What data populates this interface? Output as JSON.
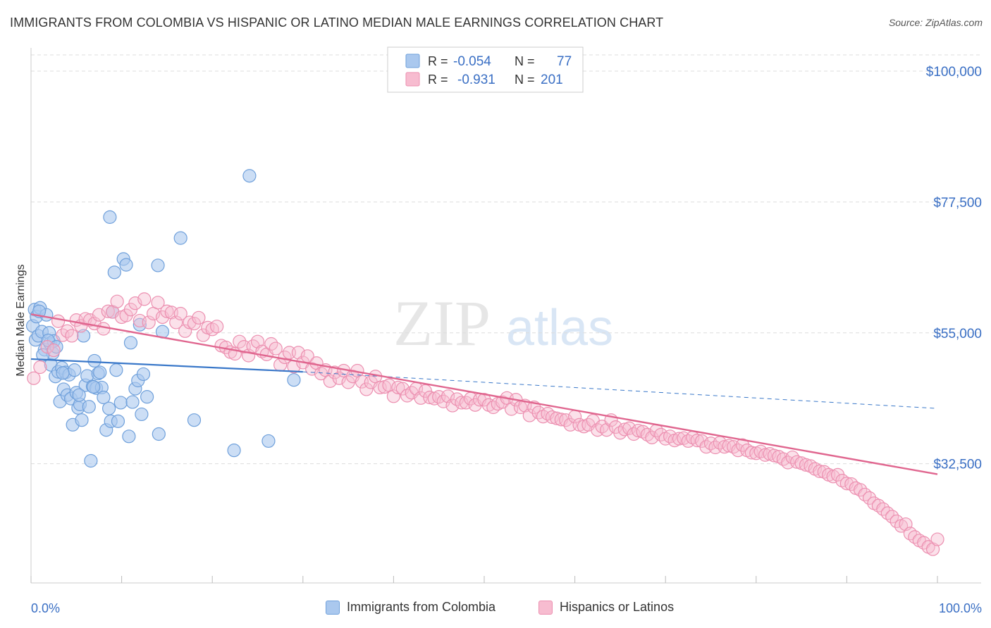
{
  "header": {
    "title": "IMMIGRANTS FROM COLOMBIA VS HISPANIC OR LATINO MEDIAN MALE EARNINGS CORRELATION CHART",
    "source": "Source: ZipAtlas.com"
  },
  "watermark": {
    "zip": "ZIP",
    "atlas": "atlas"
  },
  "colors": {
    "blue_fill": "#aac8ee",
    "blue_stroke": "#6fa0db",
    "blue_line": "#3a78c9",
    "pink_fill": "#f7bcd0",
    "pink_stroke": "#ec8fb0",
    "pink_line": "#e0668f",
    "value_text": "#3a6fc4",
    "grid": "#dddddd"
  },
  "chart_data": {
    "type": "scatter",
    "title": "IMMIGRANTS FROM COLOMBIA VS HISPANIC OR LATINO MEDIAN MALE EARNINGS CORRELATION CHART",
    "xlabel": "",
    "ylabel": "Median Male Earnings",
    "xlim": [
      0,
      100
    ],
    "ylim": [
      12000,
      104000
    ],
    "x_tick_labels": [
      "0.0%",
      "100.0%"
    ],
    "y_ticks": [
      32500,
      55000,
      77500,
      100000
    ],
    "y_tick_labels": [
      "$32,500",
      "$55,000",
      "$77,500",
      "$100,000"
    ],
    "grid": true,
    "legend_stats": [
      {
        "r_label": "R =",
        "r_value": "-0.054",
        "n_label": "N =",
        "n_value": "77"
      },
      {
        "r_label": "R =",
        "r_value": "-0.931",
        "n_label": "N =",
        "n_value": "201"
      }
    ],
    "series": [
      {
        "name": "Immigrants from Colombia",
        "color": "#aac8ee",
        "trend": {
          "x": [
            0,
            30,
            100
          ],
          "y": [
            50500,
            48300,
            42000
          ],
          "solid_until": 30
        },
        "points": [
          [
            0.2,
            56200
          ],
          [
            0.4,
            59000
          ],
          [
            0.5,
            53800
          ],
          [
            0.6,
            57800
          ],
          [
            0.8,
            54500
          ],
          [
            1.0,
            59300
          ],
          [
            1.2,
            55200
          ],
          [
            1.5,
            52100
          ],
          [
            1.7,
            58100
          ],
          [
            2.0,
            55000
          ],
          [
            2.1,
            53200
          ],
          [
            2.2,
            49500
          ],
          [
            2.4,
            51500
          ],
          [
            2.5,
            53600
          ],
          [
            2.7,
            47500
          ],
          [
            3.0,
            48300
          ],
          [
            3.2,
            43200
          ],
          [
            3.4,
            49000
          ],
          [
            3.6,
            45300
          ],
          [
            3.8,
            48200
          ],
          [
            4.0,
            44300
          ],
          [
            4.2,
            47800
          ],
          [
            4.4,
            43700
          ],
          [
            4.6,
            39200
          ],
          [
            4.8,
            48600
          ],
          [
            5.0,
            44700
          ],
          [
            5.2,
            42100
          ],
          [
            5.4,
            42700
          ],
          [
            5.6,
            40000
          ],
          [
            5.8,
            54500
          ],
          [
            6.0,
            46000
          ],
          [
            6.2,
            47600
          ],
          [
            6.4,
            42300
          ],
          [
            6.6,
            33000
          ],
          [
            6.8,
            45800
          ],
          [
            7.0,
            50200
          ],
          [
            7.2,
            45500
          ],
          [
            7.4,
            48000
          ],
          [
            7.8,
            45600
          ],
          [
            8.0,
            43900
          ],
          [
            8.3,
            38300
          ],
          [
            8.6,
            42000
          ],
          [
            8.8,
            39800
          ],
          [
            9.0,
            58600
          ],
          [
            9.2,
            65400
          ],
          [
            9.4,
            48600
          ],
          [
            9.6,
            39800
          ],
          [
            9.9,
            43000
          ],
          [
            10.2,
            67700
          ],
          [
            10.5,
            66700
          ],
          [
            10.8,
            37200
          ],
          [
            11.0,
            53300
          ],
          [
            11.2,
            43100
          ],
          [
            11.5,
            45400
          ],
          [
            11.8,
            46800
          ],
          [
            12.0,
            56400
          ],
          [
            12.2,
            41000
          ],
          [
            12.4,
            47900
          ],
          [
            12.8,
            44000
          ],
          [
            14.0,
            66600
          ],
          [
            14.5,
            55200
          ],
          [
            14.1,
            37600
          ],
          [
            16.5,
            71300
          ],
          [
            18.0,
            40000
          ],
          [
            22.4,
            34800
          ],
          [
            24.1,
            82000
          ],
          [
            26.2,
            36400
          ],
          [
            29.0,
            46900
          ],
          [
            8.7,
            74900
          ],
          [
            1.3,
            51200
          ],
          [
            3.5,
            48100
          ],
          [
            5.3,
            44300
          ],
          [
            6.9,
            45700
          ],
          [
            7.6,
            48200
          ],
          [
            1.9,
            53700
          ],
          [
            2.8,
            52600
          ],
          [
            0.9,
            58700
          ]
        ]
      },
      {
        "name": "Hispanics or Latinos",
        "color": "#f7bcd0",
        "trend": {
          "x": [
            0,
            100
          ],
          "y": [
            58200,
            30700
          ]
        },
        "points": [
          [
            0.3,
            47200
          ],
          [
            1.0,
            49100
          ],
          [
            1.8,
            52600
          ],
          [
            2.5,
            52000
          ],
          [
            3.0,
            57000
          ],
          [
            3.5,
            54600
          ],
          [
            4.0,
            55300
          ],
          [
            4.5,
            54500
          ],
          [
            5.0,
            57200
          ],
          [
            5.5,
            56200
          ],
          [
            6.0,
            57400
          ],
          [
            6.5,
            57200
          ],
          [
            7.0,
            56600
          ],
          [
            7.5,
            58100
          ],
          [
            8.0,
            55700
          ],
          [
            8.5,
            58700
          ],
          [
            9.0,
            58600
          ],
          [
            9.5,
            60400
          ],
          [
            10.0,
            57700
          ],
          [
            10.5,
            58000
          ],
          [
            11.0,
            59000
          ],
          [
            11.5,
            60100
          ],
          [
            12.0,
            57100
          ],
          [
            12.5,
            60800
          ],
          [
            13.0,
            56800
          ],
          [
            13.5,
            58300
          ],
          [
            14.0,
            60200
          ],
          [
            14.5,
            57700
          ],
          [
            15.0,
            58700
          ],
          [
            15.5,
            58500
          ],
          [
            16.0,
            56800
          ],
          [
            16.5,
            58300
          ],
          [
            17.0,
            55300
          ],
          [
            17.5,
            56800
          ],
          [
            18.0,
            56600
          ],
          [
            18.5,
            57600
          ],
          [
            19.0,
            54600
          ],
          [
            19.5,
            55900
          ],
          [
            20.0,
            55600
          ],
          [
            20.5,
            56100
          ],
          [
            21.0,
            52800
          ],
          [
            21.5,
            52500
          ],
          [
            22.0,
            51700
          ],
          [
            22.5,
            51400
          ],
          [
            23.0,
            53500
          ],
          [
            23.5,
            52600
          ],
          [
            24.0,
            51100
          ],
          [
            24.5,
            52700
          ],
          [
            25.0,
            53500
          ],
          [
            25.5,
            51800
          ],
          [
            26.0,
            51300
          ],
          [
            26.5,
            53100
          ],
          [
            27.0,
            52300
          ],
          [
            27.5,
            49500
          ],
          [
            28.0,
            50800
          ],
          [
            28.5,
            51600
          ],
          [
            29.0,
            49200
          ],
          [
            29.5,
            51600
          ],
          [
            30.0,
            49900
          ],
          [
            30.5,
            51000
          ],
          [
            31.0,
            48800
          ],
          [
            31.5,
            49800
          ],
          [
            32.0,
            48000
          ],
          [
            32.5,
            48600
          ],
          [
            33.0,
            46700
          ],
          [
            33.5,
            48200
          ],
          [
            34.0,
            47200
          ],
          [
            34.5,
            48500
          ],
          [
            35.0,
            46500
          ],
          [
            35.5,
            47500
          ],
          [
            36.0,
            48500
          ],
          [
            36.5,
            46600
          ],
          [
            37.0,
            45300
          ],
          [
            37.5,
            46500
          ],
          [
            38.0,
            47500
          ],
          [
            38.5,
            45600
          ],
          [
            39.0,
            45700
          ],
          [
            39.5,
            46000
          ],
          [
            40.0,
            44100
          ],
          [
            40.5,
            45600
          ],
          [
            41.0,
            45400
          ],
          [
            41.5,
            44200
          ],
          [
            42.0,
            44700
          ],
          [
            42.5,
            45400
          ],
          [
            43.0,
            43800
          ],
          [
            43.5,
            45000
          ],
          [
            44.0,
            43900
          ],
          [
            44.5,
            43700
          ],
          [
            45.0,
            44000
          ],
          [
            45.5,
            43200
          ],
          [
            46.0,
            44100
          ],
          [
            46.5,
            42500
          ],
          [
            47.0,
            43600
          ],
          [
            47.5,
            43000
          ],
          [
            48.0,
            43000
          ],
          [
            48.5,
            43700
          ],
          [
            49.0,
            42600
          ],
          [
            49.5,
            43500
          ],
          [
            50.0,
            43500
          ],
          [
            50.5,
            42600
          ],
          [
            51.0,
            42200
          ],
          [
            51.5,
            42800
          ],
          [
            52.0,
            43100
          ],
          [
            52.5,
            43800
          ],
          [
            53.0,
            41900
          ],
          [
            53.5,
            43500
          ],
          [
            54.0,
            42200
          ],
          [
            54.5,
            42500
          ],
          [
            55.0,
            40800
          ],
          [
            55.5,
            42200
          ],
          [
            56.0,
            41300
          ],
          [
            56.5,
            40600
          ],
          [
            57.0,
            41100
          ],
          [
            57.5,
            40500
          ],
          [
            58.0,
            40300
          ],
          [
            58.5,
            40100
          ],
          [
            59.0,
            40000
          ],
          [
            59.5,
            39200
          ],
          [
            60.0,
            40600
          ],
          [
            60.5,
            39200
          ],
          [
            61.0,
            38900
          ],
          [
            61.5,
            39200
          ],
          [
            62.0,
            39900
          ],
          [
            62.5,
            38300
          ],
          [
            63.0,
            38900
          ],
          [
            63.5,
            38300
          ],
          [
            64.0,
            40000
          ],
          [
            64.5,
            38800
          ],
          [
            65.0,
            37800
          ],
          [
            65.5,
            38400
          ],
          [
            66.0,
            38600
          ],
          [
            66.5,
            37600
          ],
          [
            67.0,
            38200
          ],
          [
            67.5,
            38000
          ],
          [
            68.0,
            37500
          ],
          [
            68.5,
            37000
          ],
          [
            69.0,
            38200
          ],
          [
            69.5,
            37500
          ],
          [
            70.0,
            36800
          ],
          [
            70.5,
            37200
          ],
          [
            71.0,
            36500
          ],
          [
            71.5,
            36800
          ],
          [
            72.0,
            36900
          ],
          [
            72.5,
            36400
          ],
          [
            73.0,
            37000
          ],
          [
            73.5,
            36500
          ],
          [
            74.0,
            36400
          ],
          [
            74.5,
            35400
          ],
          [
            75.0,
            36000
          ],
          [
            75.5,
            35300
          ],
          [
            76.0,
            36100
          ],
          [
            76.5,
            35400
          ],
          [
            77.0,
            35600
          ],
          [
            77.5,
            35400
          ],
          [
            78.0,
            34800
          ],
          [
            78.5,
            35700
          ],
          [
            79.0,
            34800
          ],
          [
            79.5,
            34400
          ],
          [
            80.0,
            34300
          ],
          [
            80.5,
            34600
          ],
          [
            81.0,
            34000
          ],
          [
            81.5,
            34200
          ],
          [
            82.0,
            33900
          ],
          [
            82.5,
            33700
          ],
          [
            83.0,
            33300
          ],
          [
            83.5,
            32700
          ],
          [
            84.0,
            33600
          ],
          [
            84.5,
            32800
          ],
          [
            85.0,
            32600
          ],
          [
            85.5,
            32300
          ],
          [
            86.0,
            32100
          ],
          [
            86.5,
            31600
          ],
          [
            87.0,
            31200
          ],
          [
            87.5,
            31100
          ],
          [
            88.0,
            30600
          ],
          [
            88.5,
            30300
          ],
          [
            89.0,
            30600
          ],
          [
            89.5,
            29600
          ],
          [
            90.0,
            29100
          ],
          [
            90.5,
            29000
          ],
          [
            91.0,
            28300
          ],
          [
            91.5,
            28000
          ],
          [
            92.0,
            27200
          ],
          [
            92.5,
            26600
          ],
          [
            93.0,
            25700
          ],
          [
            93.5,
            25300
          ],
          [
            94.0,
            24700
          ],
          [
            94.5,
            24000
          ],
          [
            95.0,
            23400
          ],
          [
            95.5,
            22600
          ],
          [
            96.0,
            21800
          ],
          [
            96.5,
            22100
          ],
          [
            97.0,
            20500
          ],
          [
            97.5,
            19900
          ],
          [
            98.0,
            19300
          ],
          [
            98.5,
            18900
          ],
          [
            99.0,
            18200
          ],
          [
            99.5,
            17800
          ],
          [
            100.0,
            19500
          ]
        ]
      }
    ]
  },
  "legend_bottom": [
    {
      "label": "Immigrants from Colombia"
    },
    {
      "label": "Hispanics or Latinos"
    }
  ]
}
